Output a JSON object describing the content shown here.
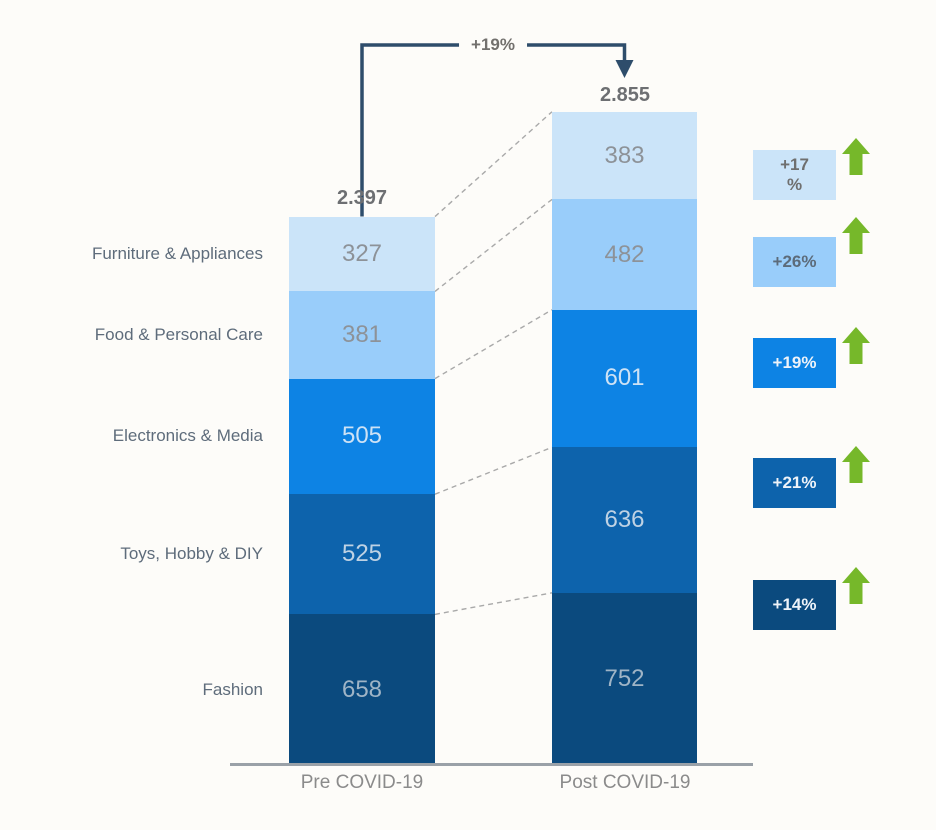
{
  "chart_data": {
    "type": "bar",
    "subtype": "stacked-column-comparison",
    "categories": [
      "Furniture & Appliances",
      "Food & Personal Care",
      "Electronics & Media",
      "Toys, Hobby & DIY",
      "Fashion"
    ],
    "series": [
      {
        "name": "Pre COVID-19",
        "total_label": "2.397",
        "values": [
          327,
          381,
          505,
          525,
          658
        ]
      },
      {
        "name": "Post COVID-19",
        "total_label": "2.855",
        "values": [
          383,
          482,
          601,
          636,
          752
        ]
      }
    ],
    "total_change_label": "+19%",
    "category_changes": [
      "+17\n%",
      "+26%",
      "+19%",
      "+21%",
      "+14%"
    ],
    "segment_colors": [
      "#cbe4f9",
      "#99cdfa",
      "#0d83e4",
      "#0d63ac",
      "#0b4a7e"
    ],
    "value_text_colors": [
      "#8d9298",
      "#8d9298",
      "#cde2f5",
      "#bed2e4",
      "#9fb4c6"
    ],
    "change_text_colors": [
      "#6f6f6f",
      "#5c6b7a",
      "#eef3f9",
      "#eef3f9",
      "#eef3f9"
    ],
    "arrow_color": "#76b82a",
    "bracket_color": "#2e4d6b",
    "legend_position": "none",
    "grid": false,
    "ylim": [
      0,
      2855
    ]
  }
}
